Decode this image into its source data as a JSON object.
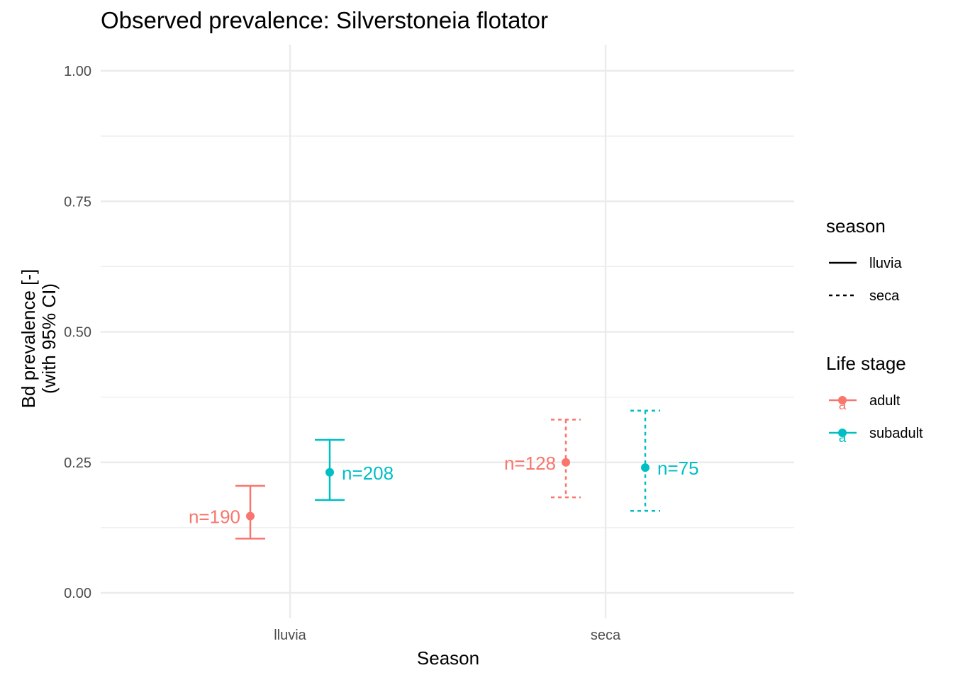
{
  "chart_data": {
    "type": "errorbar",
    "title": "Observed prevalence: Silverstoneia flotator",
    "xlabel": "Season",
    "ylabel_lines": [
      "Bd prevalence [-]",
      "(with 95% CI)"
    ],
    "categories": [
      "lluvia",
      "seca"
    ],
    "ylim": [
      -0.05,
      1.05
    ],
    "yticks": [
      "0.00",
      "0.25",
      "0.50",
      "0.75",
      "1.00"
    ],
    "grid": true,
    "legend_position": "right",
    "legends": [
      {
        "title": "season",
        "kind": "linetype",
        "items": [
          {
            "label": "lluvia",
            "dash": "solid"
          },
          {
            "label": "seca",
            "dash": "dashed"
          }
        ]
      },
      {
        "title": "Life stage",
        "kind": "color",
        "items": [
          {
            "label": "adult",
            "color": "#F8766D"
          },
          {
            "label": "subadult",
            "color": "#00BFC4"
          }
        ]
      }
    ],
    "series": [
      {
        "name": "adult",
        "color": "#F8766D",
        "points": [
          {
            "season": "lluvia",
            "y": 0.147,
            "lower": 0.104,
            "upper": 0.205,
            "label": "n=190",
            "dash": "solid"
          },
          {
            "season": "seca",
            "y": 0.25,
            "lower": 0.183,
            "upper": 0.332,
            "label": "n=128",
            "dash": "dashed"
          }
        ]
      },
      {
        "name": "subadult",
        "color": "#00BFC4",
        "points": [
          {
            "season": "lluvia",
            "y": 0.231,
            "lower": 0.178,
            "upper": 0.293,
            "label": "n=208",
            "dash": "solid"
          },
          {
            "season": "seca",
            "y": 0.24,
            "lower": 0.157,
            "upper": 0.349,
            "label": "n=75",
            "dash": "dashed"
          }
        ]
      }
    ]
  }
}
